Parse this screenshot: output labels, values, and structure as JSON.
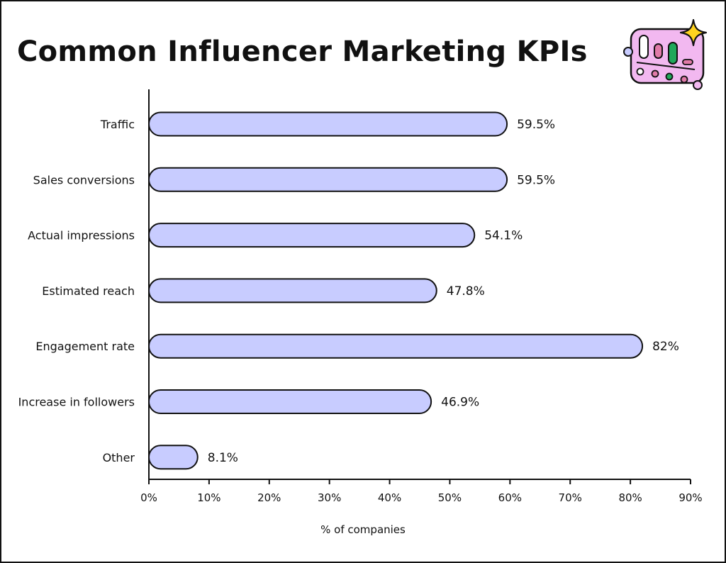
{
  "chart_data": {
    "type": "bar",
    "orientation": "horizontal",
    "title": "Common Influencer Marketing KPIs",
    "categories": [
      "Traffic",
      "Sales conversions",
      "Actual impressions",
      "Estimated reach",
      "Engagement rate",
      "Increase in followers",
      "Other"
    ],
    "values": [
      59.5,
      59.5,
      54.1,
      47.8,
      82,
      46.9,
      8.1
    ],
    "value_labels": [
      "59.5%",
      "59.5%",
      "54.1%",
      "47.8%",
      "82%",
      "46.9%",
      "8.1%"
    ],
    "xlabel": "% of companies",
    "ylabel": "",
    "xlim": [
      0,
      90
    ],
    "xticks": [
      0,
      10,
      20,
      30,
      40,
      50,
      60,
      70,
      80,
      90
    ],
    "xtick_labels": [
      "0%",
      "10%",
      "20%",
      "30%",
      "40%",
      "50%",
      "60%",
      "70%",
      "80%",
      "90%"
    ],
    "grid": false,
    "legend": "none",
    "colors": {
      "bar_fill": "#c8ccff",
      "bar_stroke": "#111111",
      "text": "#111111",
      "frame": "#111111"
    }
  },
  "decoration": {
    "icon": "dashboard-sparkle-icon",
    "colors": {
      "panel": "#f2b8f0",
      "sparkle": "#ffd21f",
      "green": "#1fa85a",
      "pink": "#e07aa8",
      "lavender": "#c8ccff"
    }
  }
}
